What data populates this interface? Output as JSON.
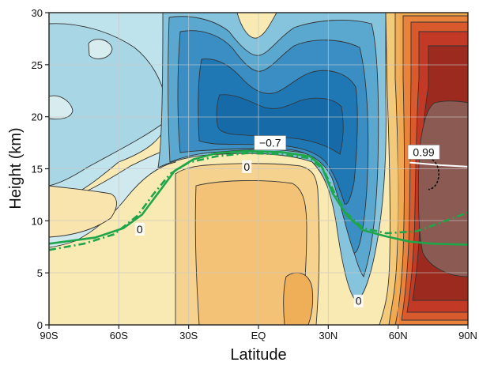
{
  "chart_data": {
    "type": "heatmap",
    "xlabel": "Latitude",
    "ylabel": "Height (km)",
    "xlim": [
      -90,
      90
    ],
    "ylim": [
      0,
      30
    ],
    "x_ticks": [
      {
        "value": -90,
        "label": "90S"
      },
      {
        "value": -60,
        "label": "60S"
      },
      {
        "value": -30,
        "label": "30S"
      },
      {
        "value": 0,
        "label": "EQ"
      },
      {
        "value": 30,
        "label": "30N"
      },
      {
        "value": 60,
        "label": "60N"
      },
      {
        "value": 90,
        "label": "90N"
      }
    ],
    "y_ticks": [
      {
        "value": 0,
        "label": "0"
      },
      {
        "value": 5,
        "label": "5"
      },
      {
        "value": 10,
        "label": "10"
      },
      {
        "value": 15,
        "label": "15"
      },
      {
        "value": 20,
        "label": "20"
      },
      {
        "value": 25,
        "label": "25"
      },
      {
        "value": 30,
        "label": "30"
      }
    ],
    "grid": true,
    "contour_labels": [
      {
        "text": "−0.7",
        "lat": 5,
        "height": 17.5,
        "boxed": true
      },
      {
        "text": "0.99",
        "lat": 71,
        "height": 16.6,
        "boxed": true
      },
      {
        "text": "0",
        "lat": -5,
        "height": 15.2,
        "boxed": false
      },
      {
        "text": "0",
        "lat": -51,
        "height": 9.2,
        "boxed": false
      },
      {
        "text": "0",
        "lat": 43,
        "height": 2.3,
        "boxed": false
      }
    ],
    "lines": [
      {
        "style": "solid",
        "color": "#1fa64a",
        "points": [
          [
            -90,
            7.8
          ],
          [
            -70,
            8.4
          ],
          [
            -58,
            9.3
          ],
          [
            -50,
            10.6
          ],
          [
            -43,
            12.7
          ],
          [
            -36,
            14.8
          ],
          [
            -28,
            15.9
          ],
          [
            -18,
            16.5
          ],
          [
            -5,
            16.7
          ],
          [
            10,
            16.6
          ],
          [
            22,
            16.2
          ],
          [
            27,
            15.3
          ],
          [
            32,
            12.6
          ],
          [
            38,
            10.5
          ],
          [
            45,
            9.1
          ],
          [
            55,
            8.5
          ],
          [
            65,
            8.0
          ],
          [
            75,
            7.8
          ],
          [
            90,
            7.7
          ]
        ]
      },
      {
        "style": "dashdot",
        "color": "#1fa64a",
        "points": [
          [
            -90,
            7.2
          ],
          [
            -75,
            7.8
          ],
          [
            -62,
            8.7
          ],
          [
            -52,
            10.5
          ],
          [
            -45,
            12.6
          ],
          [
            -38,
            14.5
          ],
          [
            -30,
            15.6
          ],
          [
            -18,
            16.2
          ],
          [
            -5,
            16.5
          ],
          [
            10,
            16.4
          ],
          [
            22,
            16.0
          ],
          [
            28,
            14.9
          ],
          [
            33,
            12.5
          ],
          [
            38,
            10.7
          ],
          [
            45,
            9.3
          ],
          [
            55,
            8.8
          ],
          [
            68,
            9.0
          ],
          [
            78,
            9.8
          ],
          [
            90,
            10.8
          ]
        ]
      },
      {
        "style": "solid",
        "color": "#ffffff",
        "points": [
          [
            65,
            15.6
          ],
          [
            78,
            15.35
          ],
          [
            90,
            15.2
          ]
        ]
      }
    ]
  }
}
